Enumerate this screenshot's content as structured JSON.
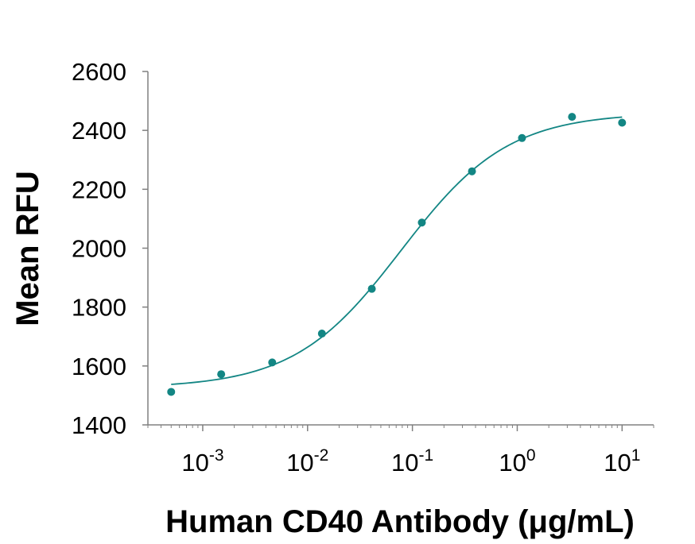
{
  "chart_data": {
    "type": "scatter",
    "title": "",
    "xlabel": "Human CD40 Antibody (μg/mL)",
    "ylabel": "Mean RFU",
    "x_scale": "log",
    "xlim": [
      0.0003,
      20
    ],
    "ylim": [
      1400,
      2600
    ],
    "y_ticks": [
      1400,
      1600,
      1800,
      2000,
      2200,
      2400,
      2600
    ],
    "y_tick_labels": [
      "1400",
      "1600",
      "1800",
      "2000",
      "2200",
      "2400",
      "2600"
    ],
    "x_ticks": [
      0.001,
      0.01,
      0.1,
      1,
      10
    ],
    "x_tick_labels": [
      {
        "base": "10",
        "exp": "-3"
      },
      {
        "base": "10",
        "exp": "-2"
      },
      {
        "base": "10",
        "exp": "-1"
      },
      {
        "base": "10",
        "exp": "0"
      },
      {
        "base": "10",
        "exp": "1"
      }
    ],
    "grid": false,
    "legend": "none",
    "color": "#138684",
    "series": [
      {
        "points": [
          {
            "x": 0.0005,
            "y": 1512
          },
          {
            "x": 0.0015,
            "y": 1572
          },
          {
            "x": 0.0046,
            "y": 1612
          },
          {
            "x": 0.0137,
            "y": 1710
          },
          {
            "x": 0.041,
            "y": 1862
          },
          {
            "x": 0.123,
            "y": 2087
          },
          {
            "x": 0.37,
            "y": 2261
          },
          {
            "x": 1.11,
            "y": 2374
          },
          {
            "x": 3.33,
            "y": 2446
          },
          {
            "x": 10,
            "y": 2426
          }
        ]
      }
    ],
    "fit_curve": {
      "type": "4PL",
      "bottom": 1525,
      "top": 2460,
      "ec50": 0.078,
      "hill": 0.85
    }
  }
}
